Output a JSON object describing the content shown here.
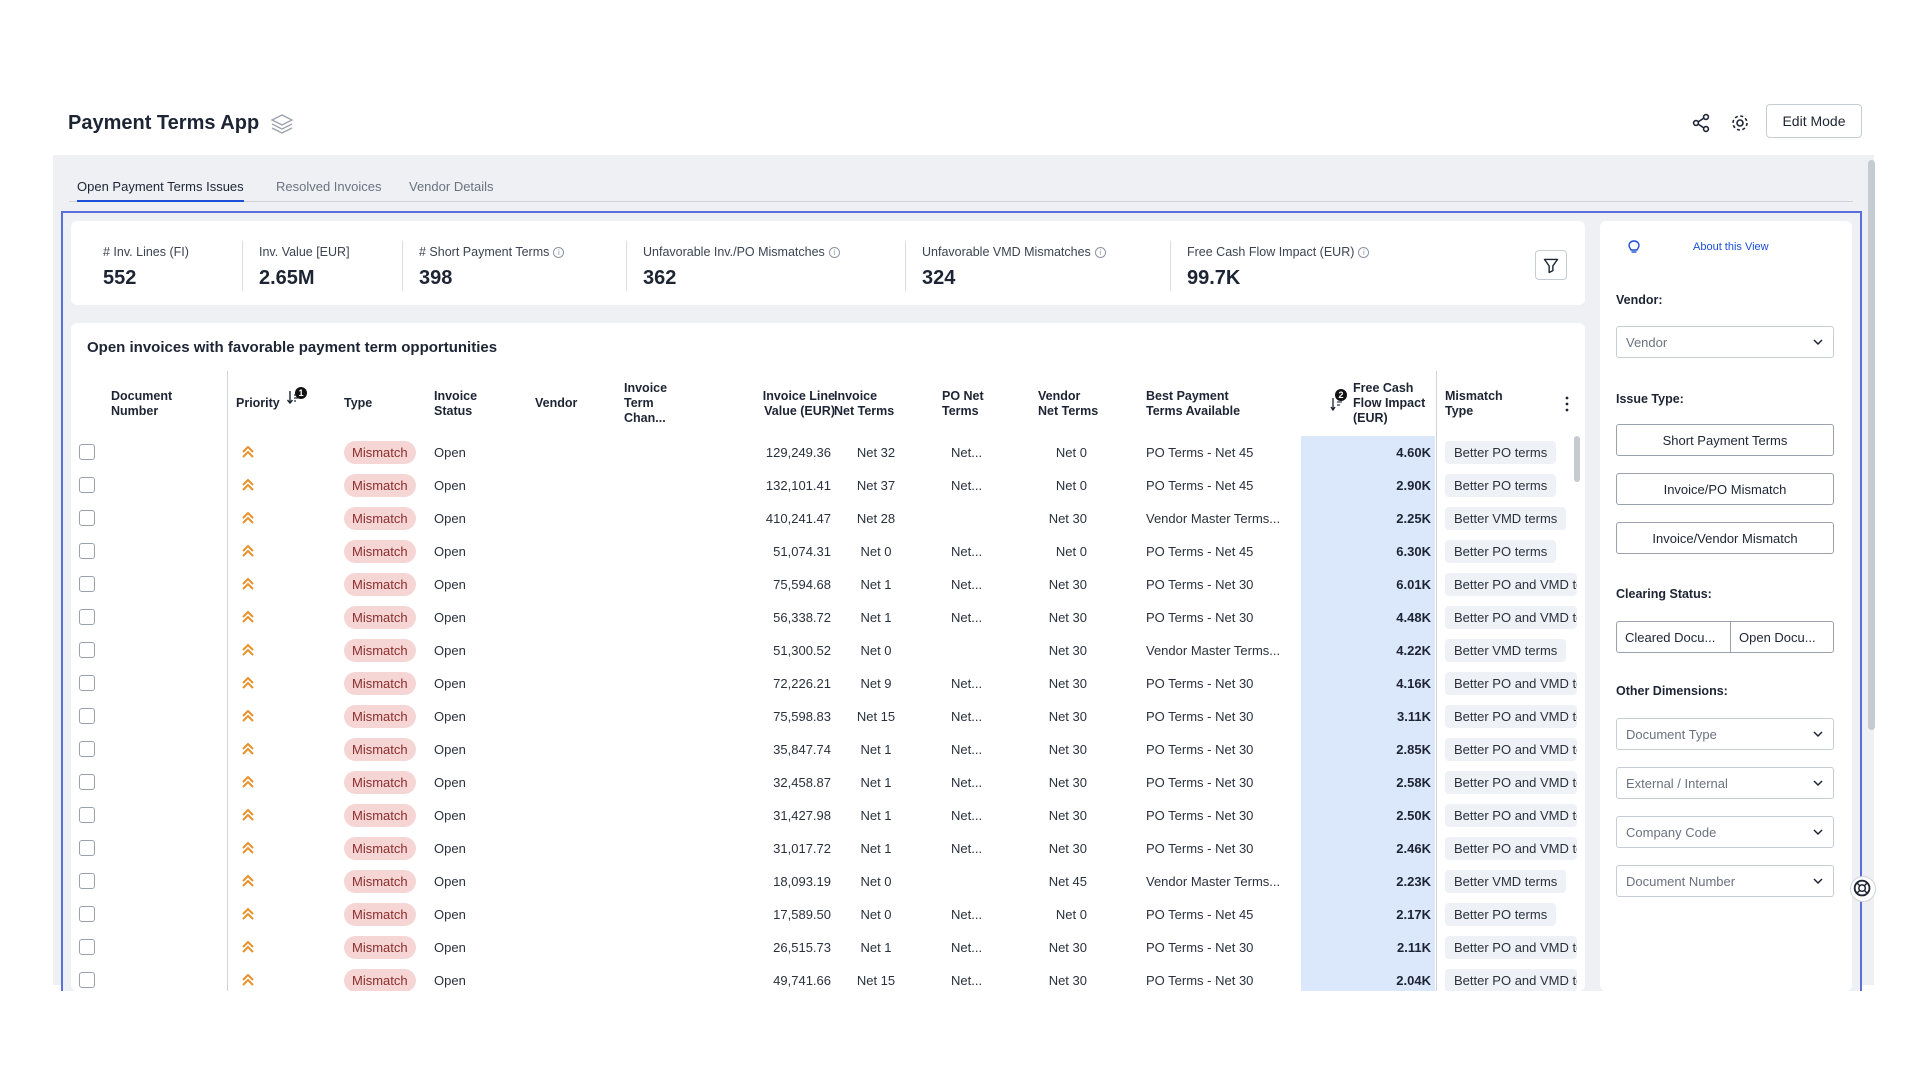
{
  "app": {
    "title": "Payment Terms App",
    "edit_mode": "Edit Mode"
  },
  "tabs": [
    "Open Payment Terms Issues",
    "Resolved Invoices",
    "Vendor Details"
  ],
  "kpis": [
    {
      "label": "# Inv. Lines (FI)",
      "value": "552",
      "info": false
    },
    {
      "label": "Inv. Value [EUR]",
      "value": "2.65M",
      "info": false
    },
    {
      "label": "# Short Payment Terms",
      "value": "398",
      "info": true
    },
    {
      "label": "Unfavorable Inv./PO Mismatches",
      "value": "362",
      "info": true
    },
    {
      "label": "Unfavorable VMD Mismatches",
      "value": "324",
      "info": true
    },
    {
      "label": "Free Cash Flow Impact (EUR)",
      "value": "99.7K",
      "info": true
    }
  ],
  "table": {
    "title": "Open invoices with favorable payment term opportunities",
    "headers": {
      "doc": "Document\nNumber",
      "priority": "Priority",
      "type": "Type",
      "status": "Invoice\nStatus",
      "vendor": "Vendor",
      "change": "Invoice\nTerm\nChan...",
      "value": "Invoice Line\nValue (EUR)",
      "inv_net": "Invoice\nNet Terms",
      "po_net": "PO Net\nTerms",
      "vendor_net": "Vendor\nNet Terms",
      "best": "Best Payment\nTerms Available",
      "fcf": "Free Cash\nFlow Impact\n(EUR)",
      "mismatch": "Mismatch\nType"
    },
    "sort_badges": [
      "1",
      "2"
    ],
    "rows": [
      {
        "type": "Mismatch",
        "status": "Open",
        "value": "129,249.36",
        "inv_net": "Net 32",
        "po_net": "Net...",
        "vendor_net": "Net 0",
        "best": "PO Terms - Net 45",
        "fcf": "4.60K",
        "mismatch": "Better PO terms"
      },
      {
        "type": "Mismatch",
        "status": "Open",
        "value": "132,101.41",
        "inv_net": "Net 37",
        "po_net": "Net...",
        "vendor_net": "Net 0",
        "best": "PO Terms - Net 45",
        "fcf": "2.90K",
        "mismatch": "Better PO terms"
      },
      {
        "type": "Mismatch",
        "status": "Open",
        "value": "410,241.47",
        "inv_net": "Net 28",
        "po_net": "",
        "vendor_net": "Net 30",
        "best": "Vendor Master Terms...",
        "fcf": "2.25K",
        "mismatch": "Better VMD terms"
      },
      {
        "type": "Mismatch",
        "status": "Open",
        "value": "51,074.31",
        "inv_net": "Net 0",
        "po_net": "Net...",
        "vendor_net": "Net 0",
        "best": "PO Terms - Net 45",
        "fcf": "6.30K",
        "mismatch": "Better PO terms"
      },
      {
        "type": "Mismatch",
        "status": "Open",
        "value": "75,594.68",
        "inv_net": "Net 1",
        "po_net": "Net...",
        "vendor_net": "Net 30",
        "best": "PO Terms - Net 30",
        "fcf": "6.01K",
        "mismatch": "Better PO and VMD te"
      },
      {
        "type": "Mismatch",
        "status": "Open",
        "value": "56,338.72",
        "inv_net": "Net 1",
        "po_net": "Net...",
        "vendor_net": "Net 30",
        "best": "PO Terms - Net 30",
        "fcf": "4.48K",
        "mismatch": "Better PO and VMD te"
      },
      {
        "type": "Mismatch",
        "status": "Open",
        "value": "51,300.52",
        "inv_net": "Net 0",
        "po_net": "",
        "vendor_net": "Net 30",
        "best": "Vendor Master Terms...",
        "fcf": "4.22K",
        "mismatch": "Better VMD terms"
      },
      {
        "type": "Mismatch",
        "status": "Open",
        "value": "72,226.21",
        "inv_net": "Net 9",
        "po_net": "Net...",
        "vendor_net": "Net 30",
        "best": "PO Terms - Net 30",
        "fcf": "4.16K",
        "mismatch": "Better PO and VMD te"
      },
      {
        "type": "Mismatch",
        "status": "Open",
        "value": "75,598.83",
        "inv_net": "Net 15",
        "po_net": "Net...",
        "vendor_net": "Net 30",
        "best": "PO Terms - Net 30",
        "fcf": "3.11K",
        "mismatch": "Better PO and VMD te"
      },
      {
        "type": "Mismatch",
        "status": "Open",
        "value": "35,847.74",
        "inv_net": "Net 1",
        "po_net": "Net...",
        "vendor_net": "Net 30",
        "best": "PO Terms - Net 30",
        "fcf": "2.85K",
        "mismatch": "Better PO and VMD te"
      },
      {
        "type": "Mismatch",
        "status": "Open",
        "value": "32,458.87",
        "inv_net": "Net 1",
        "po_net": "Net...",
        "vendor_net": "Net 30",
        "best": "PO Terms - Net 30",
        "fcf": "2.58K",
        "mismatch": "Better PO and VMD te"
      },
      {
        "type": "Mismatch",
        "status": "Open",
        "value": "31,427.98",
        "inv_net": "Net 1",
        "po_net": "Net...",
        "vendor_net": "Net 30",
        "best": "PO Terms - Net 30",
        "fcf": "2.50K",
        "mismatch": "Better PO and VMD te"
      },
      {
        "type": "Mismatch",
        "status": "Open",
        "value": "31,017.72",
        "inv_net": "Net 1",
        "po_net": "Net...",
        "vendor_net": "Net 30",
        "best": "PO Terms - Net 30",
        "fcf": "2.46K",
        "mismatch": "Better PO and VMD te"
      },
      {
        "type": "Mismatch",
        "status": "Open",
        "value": "18,093.19",
        "inv_net": "Net 0",
        "po_net": "",
        "vendor_net": "Net 45",
        "best": "Vendor Master Terms...",
        "fcf": "2.23K",
        "mismatch": "Better VMD terms"
      },
      {
        "type": "Mismatch",
        "status": "Open",
        "value": "17,589.50",
        "inv_net": "Net 0",
        "po_net": "Net...",
        "vendor_net": "Net 0",
        "best": "PO Terms - Net 45",
        "fcf": "2.17K",
        "mismatch": "Better PO terms"
      },
      {
        "type": "Mismatch",
        "status": "Open",
        "value": "26,515.73",
        "inv_net": "Net 1",
        "po_net": "Net...",
        "vendor_net": "Net 30",
        "best": "PO Terms - Net 30",
        "fcf": "2.11K",
        "mismatch": "Better PO and VMD te"
      },
      {
        "type": "Mismatch",
        "status": "Open",
        "value": "49,741.66",
        "inv_net": "Net 15",
        "po_net": "Net...",
        "vendor_net": "Net 30",
        "best": "PO Terms - Net 30",
        "fcf": "2.04K",
        "mismatch": "Better PO and VMD te"
      }
    ]
  },
  "sidebar": {
    "about": "About this View",
    "vendor_label": "Vendor:",
    "vendor_placeholder": "Vendor",
    "issue_label": "Issue Type:",
    "issue_buttons": [
      "Short Payment Terms",
      "Invoice/PO Mismatch",
      "Invoice/Vendor Mismatch"
    ],
    "clearing_label": "Clearing Status:",
    "clearing_buttons": [
      "Cleared Docu...",
      "Open Docu..."
    ],
    "other_label": "Other Dimensions:",
    "dimensions": [
      "Document Type",
      "External / Internal",
      "Company Code",
      "Document Number"
    ]
  },
  "colors": {
    "accent": "#1d4ed8",
    "mismatch_pill": "#f6d5d5",
    "priority": "#e8902a",
    "fcf_highlight": "#dbe8fb",
    "frame": "#5a6fdc"
  }
}
